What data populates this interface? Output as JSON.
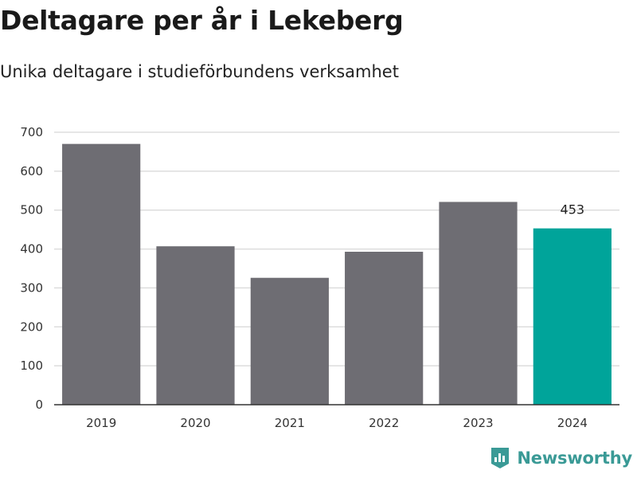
{
  "title": "Deltagare per år i Lekeberg",
  "subtitle": "Unika deltagare i studieförbundens verksamhet",
  "brand": {
    "name": "Newsworthy",
    "icon": "newsworthy-logo-icon",
    "color": "#3a9a96"
  },
  "colors": {
    "default_bar": "#6e6d73",
    "highlight_bar": "#00a49a",
    "grid": "#dddddd",
    "axis": "#333333"
  },
  "chart_data": {
    "type": "bar",
    "title": "Deltagare per år i Lekeberg",
    "subtitle": "Unika deltagare i studieförbundens verksamhet",
    "categories": [
      "2019",
      "2020",
      "2021",
      "2022",
      "2023",
      "2024"
    ],
    "values": [
      670,
      407,
      326,
      393,
      521,
      453
    ],
    "highlight": "2024",
    "data_labels": [
      {
        "category": "2024",
        "text": "453"
      }
    ],
    "xlabel": "",
    "ylabel": "",
    "ylim": [
      0,
      700
    ],
    "yticks": [
      0,
      100,
      200,
      300,
      400,
      500,
      600,
      700
    ],
    "grid": true,
    "legend": "none"
  }
}
